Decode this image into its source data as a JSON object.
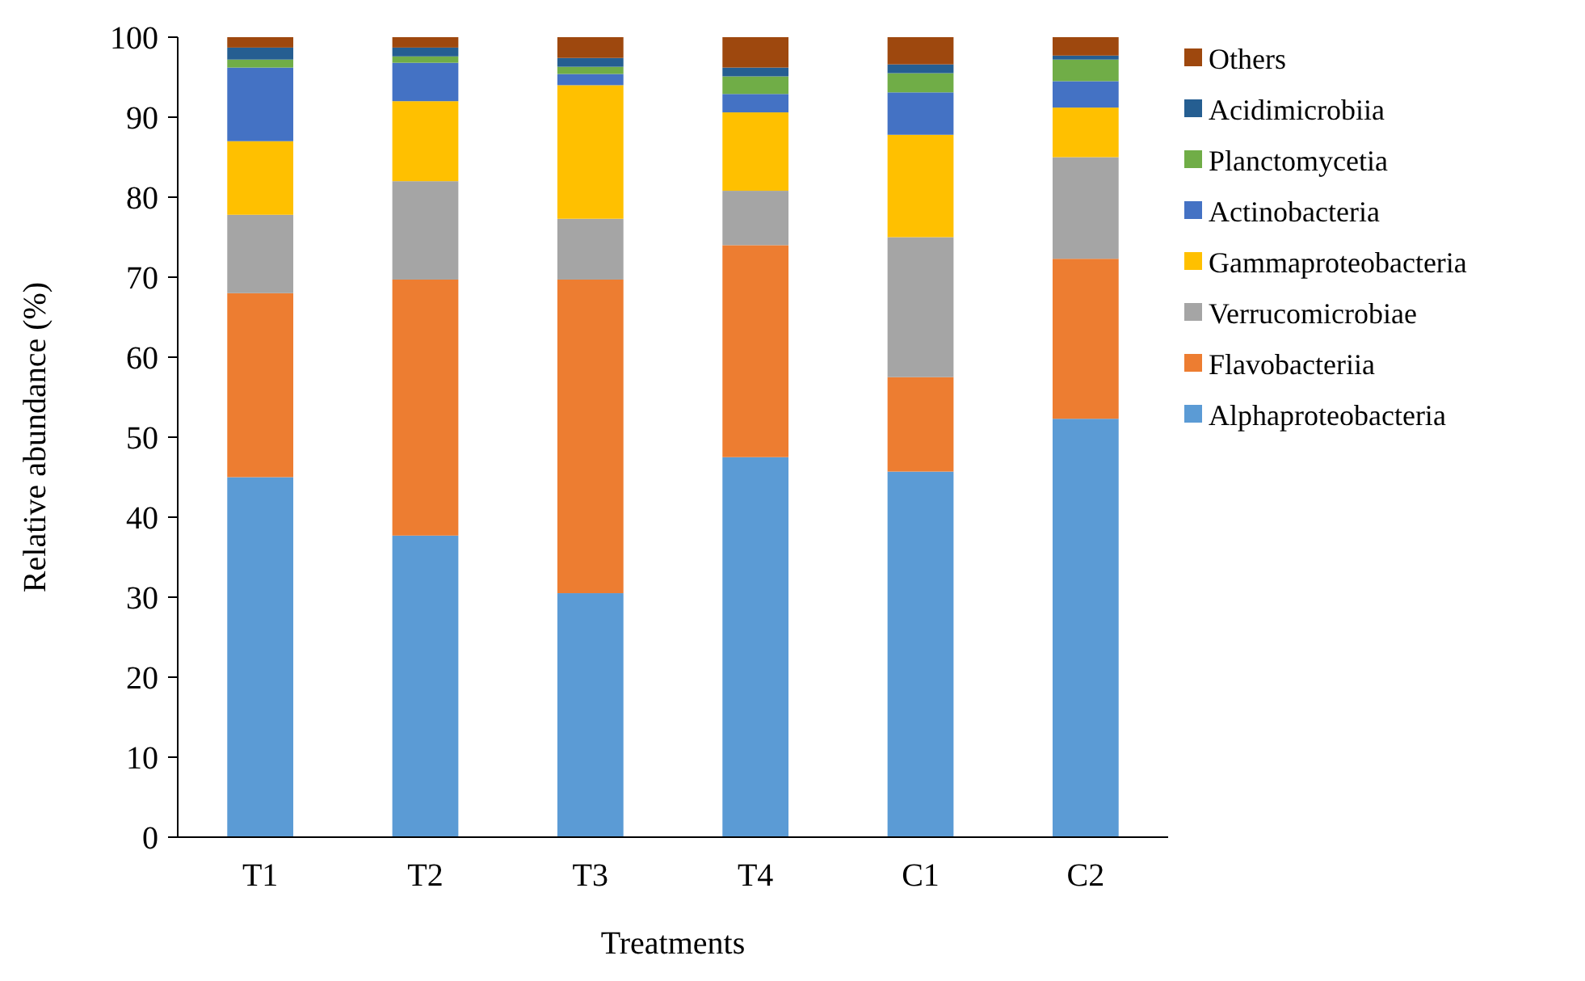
{
  "chart_data": {
    "type": "bar",
    "stacked": true,
    "xlabel": "Treatments",
    "ylabel": "Relative abundance (%)",
    "categories": [
      "T1",
      "T2",
      "T3",
      "T4",
      "C1",
      "C2"
    ],
    "ylim": [
      0,
      100
    ],
    "yticks": [
      0,
      10,
      20,
      30,
      40,
      50,
      60,
      70,
      80,
      90,
      100
    ],
    "grid": false,
    "legend": "right",
    "series": [
      {
        "name": "Alphaproteobacteria",
        "color": "#5b9bd5",
        "values": [
          45,
          37.7,
          30.5,
          47.5,
          45.7,
          52.3
        ]
      },
      {
        "name": "Flavobacteriia",
        "color": "#ed7d31",
        "values": [
          23,
          32,
          39.2,
          26.5,
          11.8,
          20
        ]
      },
      {
        "name": "Verrucomicrobiae",
        "color": "#a5a5a5",
        "values": [
          9.8,
          12.3,
          7.6,
          6.8,
          17.5,
          12.7
        ]
      },
      {
        "name": "Gammaproteobacteria",
        "color": "#ffc000",
        "values": [
          9.2,
          10,
          16.7,
          9.8,
          12.8,
          6.2
        ]
      },
      {
        "name": "Actinobacteria",
        "color": "#4472c4",
        "values": [
          9.2,
          4.8,
          1.4,
          2.3,
          5.3,
          3.3
        ]
      },
      {
        "name": "Planctomycetia",
        "color": "#70ad47",
        "values": [
          1,
          0.8,
          0.9,
          2.2,
          2.4,
          2.7
        ]
      },
      {
        "name": "Acidimicrobiia",
        "color": "#255e91",
        "values": [
          1.5,
          1.1,
          1.1,
          1.1,
          1.1,
          0.5
        ]
      },
      {
        "name": "Others",
        "color": "#9e480e",
        "values": [
          1.3,
          1.3,
          2.6,
          3.8,
          3.4,
          2.3
        ]
      }
    ]
  }
}
